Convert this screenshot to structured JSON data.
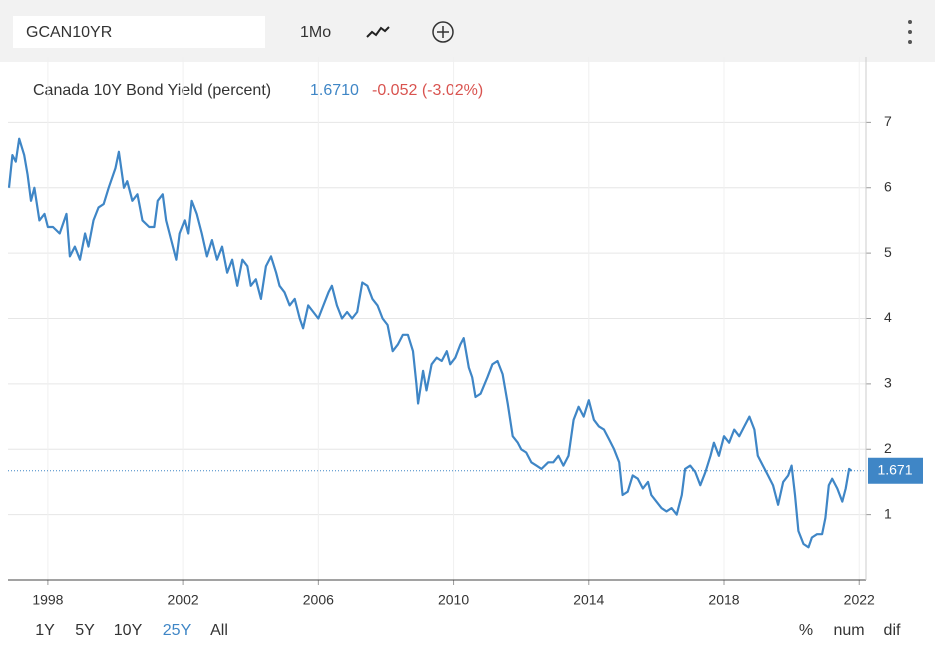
{
  "toolbar": {
    "symbol": "GCAN10YR",
    "frequency": "1Mo"
  },
  "chart_data": {
    "type": "line",
    "title": "Canada 10Y Bond Yield (percent)",
    "quote": {
      "last": "1.6710",
      "change": "-0.052 (-3.02%)"
    },
    "current_value": {
      "value": 1.671,
      "label": "1.671"
    },
    "x": [
      1996.85,
      1996.95,
      1997.05,
      1997.15,
      1997.3,
      1997.4,
      1997.5,
      1997.6,
      1997.75,
      1997.9,
      1998.0,
      1998.15,
      1998.35,
      1998.55,
      1998.65,
      1998.8,
      1998.95,
      1999.1,
      1999.2,
      1999.35,
      1999.5,
      1999.65,
      1999.8,
      2000.0,
      2000.1,
      2000.25,
      2000.35,
      2000.5,
      2000.65,
      2000.8,
      2001.0,
      2001.15,
      2001.25,
      2001.4,
      2001.5,
      2001.65,
      2001.8,
      2001.9,
      2002.05,
      2002.15,
      2002.25,
      2002.4,
      2002.55,
      2002.7,
      2002.85,
      2003.0,
      2003.15,
      2003.3,
      2003.45,
      2003.6,
      2003.75,
      2003.9,
      2004.0,
      2004.15,
      2004.3,
      2004.45,
      2004.6,
      2004.75,
      2004.85,
      2005.0,
      2005.15,
      2005.3,
      2005.45,
      2005.55,
      2005.7,
      2005.85,
      2006.0,
      2006.15,
      2006.3,
      2006.4,
      2006.55,
      2006.7,
      2006.85,
      2007.0,
      2007.15,
      2007.3,
      2007.45,
      2007.6,
      2007.75,
      2007.9,
      2008.05,
      2008.2,
      2008.35,
      2008.5,
      2008.65,
      2008.8,
      2008.9,
      2008.95,
      2009.1,
      2009.2,
      2009.35,
      2009.5,
      2009.65,
      2009.8,
      2009.9,
      2010.05,
      2010.2,
      2010.3,
      2010.45,
      2010.55,
      2010.65,
      2010.8,
      2011.0,
      2011.15,
      2011.3,
      2011.45,
      2011.6,
      2011.75,
      2011.9,
      2012.0,
      2012.15,
      2012.3,
      2012.45,
      2012.6,
      2012.8,
      2012.95,
      2013.1,
      2013.25,
      2013.4,
      2013.55,
      2013.7,
      2013.85,
      2014.0,
      2014.15,
      2014.3,
      2014.45,
      2014.6,
      2014.75,
      2014.9,
      2015.0,
      2015.15,
      2015.3,
      2015.45,
      2015.6,
      2015.75,
      2015.85,
      2016.0,
      2016.15,
      2016.3,
      2016.45,
      2016.6,
      2016.75,
      2016.85,
      2017.0,
      2017.15,
      2017.3,
      2017.45,
      2017.6,
      2017.7,
      2017.85,
      2018.0,
      2018.15,
      2018.3,
      2018.45,
      2018.6,
      2018.75,
      2018.9,
      2019.0,
      2019.15,
      2019.3,
      2019.45,
      2019.6,
      2019.75,
      2019.9,
      2020.0,
      2020.1,
      2020.2,
      2020.35,
      2020.5,
      2020.6,
      2020.75,
      2020.9,
      2021.0,
      2021.1,
      2021.2,
      2021.35,
      2021.5,
      2021.6,
      2021.7,
      2021.77
    ],
    "series": [
      {
        "color": "#3f86c6",
        "values": [
          6.0,
          6.5,
          6.4,
          6.75,
          6.5,
          6.2,
          5.8,
          6.0,
          5.5,
          5.6,
          5.4,
          5.4,
          5.3,
          5.6,
          4.95,
          5.1,
          4.9,
          5.3,
          5.1,
          5.5,
          5.7,
          5.75,
          6.0,
          6.3,
          6.55,
          6.0,
          6.1,
          5.8,
          5.9,
          5.5,
          5.4,
          5.4,
          5.8,
          5.9,
          5.5,
          5.2,
          4.9,
          5.3,
          5.5,
          5.3,
          5.8,
          5.6,
          5.3,
          4.95,
          5.2,
          4.9,
          5.1,
          4.7,
          4.9,
          4.5,
          4.9,
          4.8,
          4.5,
          4.6,
          4.3,
          4.8,
          4.95,
          4.7,
          4.5,
          4.4,
          4.2,
          4.3,
          4.0,
          3.85,
          4.2,
          4.1,
          4.0,
          4.2,
          4.4,
          4.5,
          4.2,
          4.0,
          4.1,
          4.0,
          4.1,
          4.55,
          4.5,
          4.3,
          4.2,
          4.0,
          3.9,
          3.5,
          3.6,
          3.75,
          3.75,
          3.5,
          3.0,
          2.7,
          3.2,
          2.9,
          3.3,
          3.4,
          3.35,
          3.5,
          3.3,
          3.4,
          3.6,
          3.7,
          3.25,
          3.1,
          2.8,
          2.85,
          3.1,
          3.3,
          3.35,
          3.15,
          2.7,
          2.2,
          2.1,
          2.0,
          1.95,
          1.8,
          1.75,
          1.7,
          1.8,
          1.8,
          1.9,
          1.75,
          1.9,
          2.45,
          2.65,
          2.5,
          2.75,
          2.45,
          2.35,
          2.3,
          2.15,
          2.0,
          1.8,
          1.3,
          1.35,
          1.6,
          1.55,
          1.4,
          1.5,
          1.3,
          1.2,
          1.1,
          1.05,
          1.1,
          1.0,
          1.3,
          1.7,
          1.75,
          1.65,
          1.45,
          1.65,
          1.9,
          2.1,
          1.9,
          2.2,
          2.1,
          2.3,
          2.2,
          2.35,
          2.5,
          2.3,
          1.9,
          1.75,
          1.6,
          1.45,
          1.15,
          1.5,
          1.6,
          1.75,
          1.3,
          0.75,
          0.55,
          0.5,
          0.65,
          0.7,
          0.7,
          0.95,
          1.45,
          1.55,
          1.4,
          1.2,
          1.4,
          1.7,
          1.671
        ]
      }
    ],
    "xlim": [
      1996.82,
      2022.2
    ],
    "xticks": [
      1998,
      2002,
      2006,
      2010,
      2014,
      2018,
      2022
    ],
    "ylim": [
      0,
      8
    ],
    "yticks": [
      1,
      2,
      3,
      4,
      5,
      6,
      7
    ],
    "grid": true
  },
  "ranges": {
    "items": [
      "1Y",
      "5Y",
      "10Y",
      "25Y",
      "All"
    ],
    "selected": 3
  },
  "modes": [
    "%",
    "num",
    "dif"
  ]
}
